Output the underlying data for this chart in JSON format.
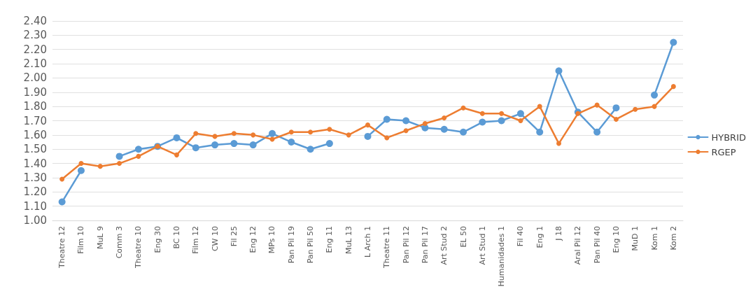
{
  "chart_data": {
    "type": "line",
    "categories": [
      "Theatre 12",
      "Film 10",
      "MuL 9",
      "Comm 3",
      "Theatre 10",
      "Eng 30",
      "BC 10",
      "Film 12",
      "CW 10",
      "Fil 25",
      "Eng 12",
      "MPs 10",
      "Pan Pil 19",
      "Pan Pil 50",
      "Eng 11",
      "MuL 13",
      "L Arch 1",
      "Theatre 11",
      "Pan Pil 12",
      "Pan Pil 17",
      "Art Stud 2",
      "EL 50",
      "Art Stud 1",
      "Humanidades 1",
      "Fil 40",
      "Eng 1",
      "J 18",
      "Aral Pil 12",
      "Pan Pil 40",
      "Eng 10",
      "MuD 1",
      "Kom 1",
      "Kom 2"
    ],
    "series": [
      {
        "name": "HYBRID",
        "color": "#5b9bd5",
        "values": [
          1.13,
          1.35,
          null,
          1.45,
          1.5,
          1.52,
          1.58,
          1.51,
          1.53,
          1.54,
          1.53,
          1.61,
          1.55,
          1.5,
          1.54,
          null,
          1.59,
          1.71,
          1.7,
          1.65,
          1.64,
          1.62,
          1.69,
          1.7,
          1.75,
          1.62,
          2.05,
          1.76,
          1.62,
          1.79,
          null,
          1.88,
          2.25
        ]
      },
      {
        "name": "RGEP",
        "color": "#ed7d31",
        "values": [
          1.29,
          1.4,
          1.38,
          1.4,
          1.45,
          1.52,
          1.46,
          1.61,
          1.59,
          1.61,
          1.6,
          1.57,
          1.62,
          1.62,
          1.64,
          1.6,
          1.67,
          1.58,
          1.63,
          1.68,
          1.72,
          1.79,
          1.75,
          1.75,
          1.7,
          1.8,
          1.54,
          1.75,
          1.81,
          1.71,
          1.78,
          1.8,
          1.94
        ]
      }
    ],
    "ylim": [
      1.0,
      2.4
    ],
    "yticks": [
      {
        "value": 1.0,
        "label": "1.00"
      },
      {
        "value": 1.1,
        "label": "1.10"
      },
      {
        "value": 1.2,
        "label": "1.20"
      },
      {
        "value": 1.3,
        "label": "1.30"
      },
      {
        "value": 1.4,
        "label": "1.40"
      },
      {
        "value": 1.5,
        "label": "1.50"
      },
      {
        "value": 1.6,
        "label": "1.60"
      },
      {
        "value": 1.7,
        "label": "1.70"
      },
      {
        "value": 1.8,
        "label": "1.80"
      },
      {
        "value": 1.9,
        "label": "1.90"
      },
      {
        "value": 2.0,
        "label": "2.00"
      },
      {
        "value": 2.1,
        "label": "2.10"
      },
      {
        "value": 2.2,
        "label": "2.20"
      },
      {
        "value": 2.3,
        "label": "2.30"
      },
      {
        "value": 2.4,
        "label": "2.40"
      }
    ],
    "grid": "y",
    "legend": "right",
    "marker": "circle",
    "line_style": "solid"
  }
}
